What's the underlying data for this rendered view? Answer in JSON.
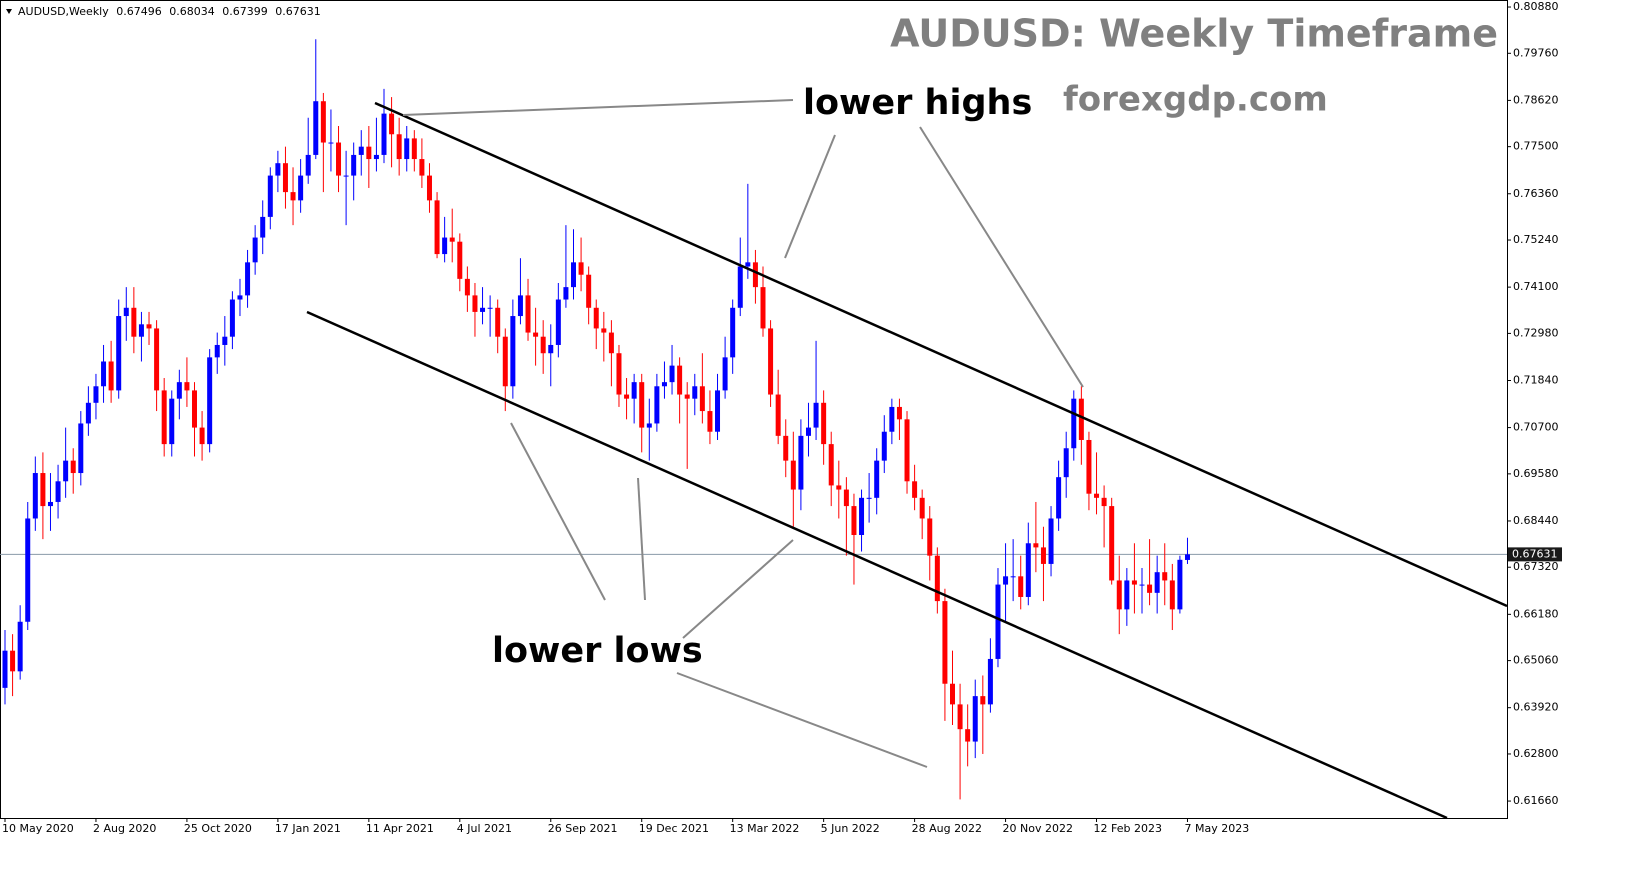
{
  "chart_data": {
    "type": "candlestick",
    "symbol": "AUDUSD,Weekly",
    "title": "AUDUSD: Weekly Timeframe",
    "subtitle": "forexgdp.com",
    "annotations": [
      "lower highs",
      "lower lows"
    ],
    "up_color": "#0000ff",
    "down_color": "#ff0000",
    "ylim": [
      0.6125,
      0.8105
    ],
    "yticks": [
      {
        "value": 0.8088,
        "label": "0.80880"
      },
      {
        "value": 0.7976,
        "label": "0.79760"
      },
      {
        "value": 0.7862,
        "label": "0.78620"
      },
      {
        "value": 0.775,
        "label": "0.77500"
      },
      {
        "value": 0.7636,
        "label": "0.76360"
      },
      {
        "value": 0.7524,
        "label": "0.75240"
      },
      {
        "value": 0.741,
        "label": "0.74100"
      },
      {
        "value": 0.7298,
        "label": "0.72980"
      },
      {
        "value": 0.7184,
        "label": "0.71840"
      },
      {
        "value": 0.707,
        "label": "0.70700"
      },
      {
        "value": 0.6958,
        "label": "0.69580"
      },
      {
        "value": 0.6844,
        "label": "0.68440"
      },
      {
        "value": 0.6732,
        "label": "0.67320"
      },
      {
        "value": 0.6618,
        "label": "0.66180"
      },
      {
        "value": 0.6506,
        "label": "0.65060"
      },
      {
        "value": 0.6392,
        "label": "0.63920"
      },
      {
        "value": 0.628,
        "label": "0.62800"
      },
      {
        "value": 0.6166,
        "label": "0.61660"
      }
    ],
    "categories": [
      "10 May 2020",
      null,
      null,
      null,
      null,
      null,
      null,
      null,
      null,
      null,
      null,
      null,
      "2 Aug 2020",
      null,
      null,
      null,
      null,
      null,
      null,
      null,
      null,
      null,
      null,
      null,
      "25 Oct 2020",
      null,
      null,
      null,
      null,
      null,
      null,
      null,
      null,
      null,
      null,
      null,
      "17 Jan 2021",
      null,
      null,
      null,
      null,
      null,
      null,
      null,
      null,
      null,
      null,
      null,
      "11 Apr 2021",
      null,
      null,
      null,
      null,
      null,
      null,
      null,
      null,
      null,
      null,
      null,
      "4 Jul 2021",
      null,
      null,
      null,
      null,
      null,
      null,
      null,
      null,
      null,
      null,
      null,
      "26 Sep 2021",
      null,
      null,
      null,
      null,
      null,
      null,
      null,
      null,
      null,
      null,
      null,
      "19 Dec 2021",
      null,
      null,
      null,
      null,
      null,
      null,
      null,
      null,
      null,
      null,
      null,
      "13 Mar 2022",
      null,
      null,
      null,
      null,
      null,
      null,
      null,
      null,
      null,
      null,
      null,
      "5 Jun 2022",
      null,
      null,
      null,
      null,
      null,
      null,
      null,
      null,
      null,
      null,
      null,
      "28 Aug 2022",
      null,
      null,
      null,
      null,
      null,
      null,
      null,
      null,
      null,
      null,
      null,
      "20 Nov 2022",
      null,
      null,
      null,
      null,
      null,
      null,
      null,
      null,
      null,
      null,
      null,
      "12 Feb 2023",
      null,
      null,
      null,
      null,
      null,
      null,
      null,
      null,
      null,
      null,
      null,
      "7 May 2023"
    ],
    "ohlc": [
      [
        0.644,
        0.658,
        0.64,
        0.653
      ],
      [
        0.653,
        0.657,
        0.642,
        0.648
      ],
      [
        0.648,
        0.664,
        0.646,
        0.66
      ],
      [
        0.66,
        0.689,
        0.658,
        0.685
      ],
      [
        0.685,
        0.7,
        0.682,
        0.696
      ],
      [
        0.696,
        0.701,
        0.68,
        0.688
      ],
      [
        0.688,
        0.696,
        0.682,
        0.689
      ],
      [
        0.689,
        0.698,
        0.685,
        0.694
      ],
      [
        0.694,
        0.707,
        0.69,
        0.699
      ],
      [
        0.699,
        0.702,
        0.691,
        0.696
      ],
      [
        0.696,
        0.711,
        0.693,
        0.708
      ],
      [
        0.708,
        0.717,
        0.705,
        0.713
      ],
      [
        0.713,
        0.72,
        0.709,
        0.717
      ],
      [
        0.717,
        0.727,
        0.713,
        0.723
      ],
      [
        0.723,
        0.728,
        0.713,
        0.716
      ],
      [
        0.716,
        0.738,
        0.714,
        0.734
      ],
      [
        0.734,
        0.741,
        0.728,
        0.736
      ],
      [
        0.736,
        0.741,
        0.725,
        0.729
      ],
      [
        0.729,
        0.735,
        0.723,
        0.732
      ],
      [
        0.732,
        0.735,
        0.727,
        0.731
      ],
      [
        0.731,
        0.733,
        0.711,
        0.716
      ],
      [
        0.716,
        0.719,
        0.7,
        0.703
      ],
      [
        0.703,
        0.716,
        0.7,
        0.714
      ],
      [
        0.714,
        0.721,
        0.709,
        0.718
      ],
      [
        0.718,
        0.724,
        0.712,
        0.716
      ],
      [
        0.716,
        0.718,
        0.7,
        0.707
      ],
      [
        0.707,
        0.711,
        0.699,
        0.703
      ],
      [
        0.703,
        0.726,
        0.701,
        0.724
      ],
      [
        0.724,
        0.73,
        0.72,
        0.727
      ],
      [
        0.727,
        0.734,
        0.722,
        0.729
      ],
      [
        0.729,
        0.74,
        0.726,
        0.738
      ],
      [
        0.738,
        0.743,
        0.734,
        0.739
      ],
      [
        0.739,
        0.75,
        0.736,
        0.747
      ],
      [
        0.747,
        0.756,
        0.744,
        0.753
      ],
      [
        0.753,
        0.762,
        0.749,
        0.758
      ],
      [
        0.758,
        0.77,
        0.755,
        0.768
      ],
      [
        0.768,
        0.774,
        0.764,
        0.771
      ],
      [
        0.771,
        0.775,
        0.76,
        0.764
      ],
      [
        0.764,
        0.77,
        0.756,
        0.762
      ],
      [
        0.762,
        0.772,
        0.759,
        0.768
      ],
      [
        0.768,
        0.782,
        0.766,
        0.773
      ],
      [
        0.773,
        0.801,
        0.772,
        0.786
      ],
      [
        0.786,
        0.788,
        0.764,
        0.776
      ],
      [
        0.776,
        0.784,
        0.769,
        0.776
      ],
      [
        0.776,
        0.78,
        0.764,
        0.768
      ],
      [
        0.768,
        0.774,
        0.756,
        0.768
      ],
      [
        0.768,
        0.776,
        0.762,
        0.773
      ],
      [
        0.773,
        0.779,
        0.768,
        0.775
      ],
      [
        0.775,
        0.78,
        0.765,
        0.772
      ],
      [
        0.772,
        0.782,
        0.769,
        0.773
      ],
      [
        0.773,
        0.789,
        0.771,
        0.783
      ],
      [
        0.783,
        0.787,
        0.77,
        0.778
      ],
      [
        0.778,
        0.782,
        0.768,
        0.772
      ],
      [
        0.772,
        0.78,
        0.769,
        0.777
      ],
      [
        0.777,
        0.779,
        0.769,
        0.772
      ],
      [
        0.772,
        0.777,
        0.765,
        0.768
      ],
      [
        0.768,
        0.771,
        0.759,
        0.762
      ],
      [
        0.762,
        0.764,
        0.748,
        0.749
      ],
      [
        0.749,
        0.758,
        0.747,
        0.753
      ],
      [
        0.753,
        0.76,
        0.747,
        0.752
      ],
      [
        0.752,
        0.754,
        0.74,
        0.743
      ],
      [
        0.743,
        0.746,
        0.735,
        0.739
      ],
      [
        0.739,
        0.742,
        0.729,
        0.735
      ],
      [
        0.735,
        0.741,
        0.732,
        0.736
      ],
      [
        0.736,
        0.739,
        0.729,
        0.736
      ],
      [
        0.736,
        0.738,
        0.725,
        0.729
      ],
      [
        0.729,
        0.731,
        0.711,
        0.717
      ],
      [
        0.717,
        0.738,
        0.714,
        0.734
      ],
      [
        0.734,
        0.748,
        0.732,
        0.739
      ],
      [
        0.739,
        0.743,
        0.728,
        0.73
      ],
      [
        0.73,
        0.736,
        0.722,
        0.729
      ],
      [
        0.729,
        0.733,
        0.72,
        0.725
      ],
      [
        0.725,
        0.732,
        0.717,
        0.727
      ],
      [
        0.727,
        0.742,
        0.724,
        0.738
      ],
      [
        0.738,
        0.756,
        0.736,
        0.741
      ],
      [
        0.741,
        0.755,
        0.738,
        0.747
      ],
      [
        0.747,
        0.753,
        0.74,
        0.744
      ],
      [
        0.744,
        0.746,
        0.732,
        0.736
      ],
      [
        0.736,
        0.738,
        0.726,
        0.731
      ],
      [
        0.731,
        0.735,
        0.723,
        0.73
      ],
      [
        0.73,
        0.733,
        0.717,
        0.725
      ],
      [
        0.725,
        0.727,
        0.712,
        0.715
      ],
      [
        0.715,
        0.719,
        0.709,
        0.714
      ],
      [
        0.714,
        0.72,
        0.708,
        0.718
      ],
      [
        0.718,
        0.72,
        0.701,
        0.707
      ],
      [
        0.707,
        0.714,
        0.699,
        0.708
      ],
      [
        0.708,
        0.72,
        0.706,
        0.717
      ],
      [
        0.717,
        0.723,
        0.714,
        0.718
      ],
      [
        0.718,
        0.727,
        0.715,
        0.722
      ],
      [
        0.722,
        0.724,
        0.708,
        0.715
      ],
      [
        0.715,
        0.718,
        0.697,
        0.714
      ],
      [
        0.714,
        0.72,
        0.71,
        0.717
      ],
      [
        0.717,
        0.725,
        0.708,
        0.711
      ],
      [
        0.711,
        0.716,
        0.703,
        0.706
      ],
      [
        0.706,
        0.72,
        0.704,
        0.716
      ],
      [
        0.716,
        0.729,
        0.714,
        0.724
      ],
      [
        0.724,
        0.738,
        0.72,
        0.736
      ],
      [
        0.736,
        0.753,
        0.734,
        0.746
      ],
      [
        0.746,
        0.766,
        0.743,
        0.747
      ],
      [
        0.747,
        0.75,
        0.737,
        0.741
      ],
      [
        0.741,
        0.746,
        0.729,
        0.731
      ],
      [
        0.731,
        0.733,
        0.712,
        0.715
      ],
      [
        0.715,
        0.721,
        0.703,
        0.705
      ],
      [
        0.705,
        0.709,
        0.695,
        0.699
      ],
      [
        0.699,
        0.706,
        0.683,
        0.692
      ],
      [
        0.692,
        0.709,
        0.687,
        0.705
      ],
      [
        0.705,
        0.713,
        0.7,
        0.707
      ],
      [
        0.707,
        0.728,
        0.704,
        0.713
      ],
      [
        0.713,
        0.716,
        0.698,
        0.703
      ],
      [
        0.703,
        0.706,
        0.688,
        0.693
      ],
      [
        0.693,
        0.699,
        0.685,
        0.692
      ],
      [
        0.692,
        0.695,
        0.676,
        0.688
      ],
      [
        0.688,
        0.691,
        0.669,
        0.681
      ],
      [
        0.681,
        0.692,
        0.677,
        0.69
      ],
      [
        0.69,
        0.696,
        0.684,
        0.69
      ],
      [
        0.69,
        0.702,
        0.686,
        0.699
      ],
      [
        0.699,
        0.71,
        0.696,
        0.706
      ],
      [
        0.706,
        0.714,
        0.703,
        0.712
      ],
      [
        0.712,
        0.714,
        0.704,
        0.709
      ],
      [
        0.709,
        0.711,
        0.691,
        0.694
      ],
      [
        0.694,
        0.698,
        0.687,
        0.69
      ],
      [
        0.69,
        0.692,
        0.68,
        0.685
      ],
      [
        0.685,
        0.688,
        0.67,
        0.676
      ],
      [
        0.676,
        0.678,
        0.662,
        0.665
      ],
      [
        0.665,
        0.668,
        0.636,
        0.645
      ],
      [
        0.645,
        0.653,
        0.635,
        0.64
      ],
      [
        0.64,
        0.645,
        0.617,
        0.634
      ],
      [
        0.634,
        0.64,
        0.625,
        0.631
      ],
      [
        0.631,
        0.646,
        0.627,
        0.642
      ],
      [
        0.642,
        0.647,
        0.628,
        0.64
      ],
      [
        0.64,
        0.656,
        0.638,
        0.651
      ],
      [
        0.651,
        0.673,
        0.649,
        0.669
      ],
      [
        0.669,
        0.679,
        0.66,
        0.671
      ],
      [
        0.671,
        0.68,
        0.665,
        0.671
      ],
      [
        0.671,
        0.676,
        0.663,
        0.666
      ],
      [
        0.666,
        0.684,
        0.664,
        0.679
      ],
      [
        0.679,
        0.689,
        0.672,
        0.678
      ],
      [
        0.678,
        0.683,
        0.665,
        0.674
      ],
      [
        0.674,
        0.688,
        0.671,
        0.685
      ],
      [
        0.685,
        0.699,
        0.682,
        0.695
      ],
      [
        0.695,
        0.706,
        0.69,
        0.702
      ],
      [
        0.702,
        0.716,
        0.699,
        0.714
      ],
      [
        0.714,
        0.717,
        0.698,
        0.704
      ],
      [
        0.704,
        0.706,
        0.687,
        0.691
      ],
      [
        0.691,
        0.701,
        0.686,
        0.69
      ],
      [
        0.69,
        0.693,
        0.678,
        0.688
      ],
      [
        0.688,
        0.69,
        0.669,
        0.67
      ],
      [
        0.67,
        0.676,
        0.657,
        0.663
      ],
      [
        0.663,
        0.673,
        0.659,
        0.67
      ],
      [
        0.67,
        0.679,
        0.662,
        0.669
      ],
      [
        0.669,
        0.673,
        0.662,
        0.669
      ],
      [
        0.669,
        0.68,
        0.664,
        0.667
      ],
      [
        0.667,
        0.676,
        0.662,
        0.672
      ],
      [
        0.672,
        0.679,
        0.664,
        0.67
      ],
      [
        0.67,
        0.674,
        0.658,
        0.663
      ],
      [
        0.663,
        0.676,
        0.662,
        0.675
      ],
      [
        0.67496,
        0.68034,
        0.67399,
        0.67631
      ]
    ]
  }
}
